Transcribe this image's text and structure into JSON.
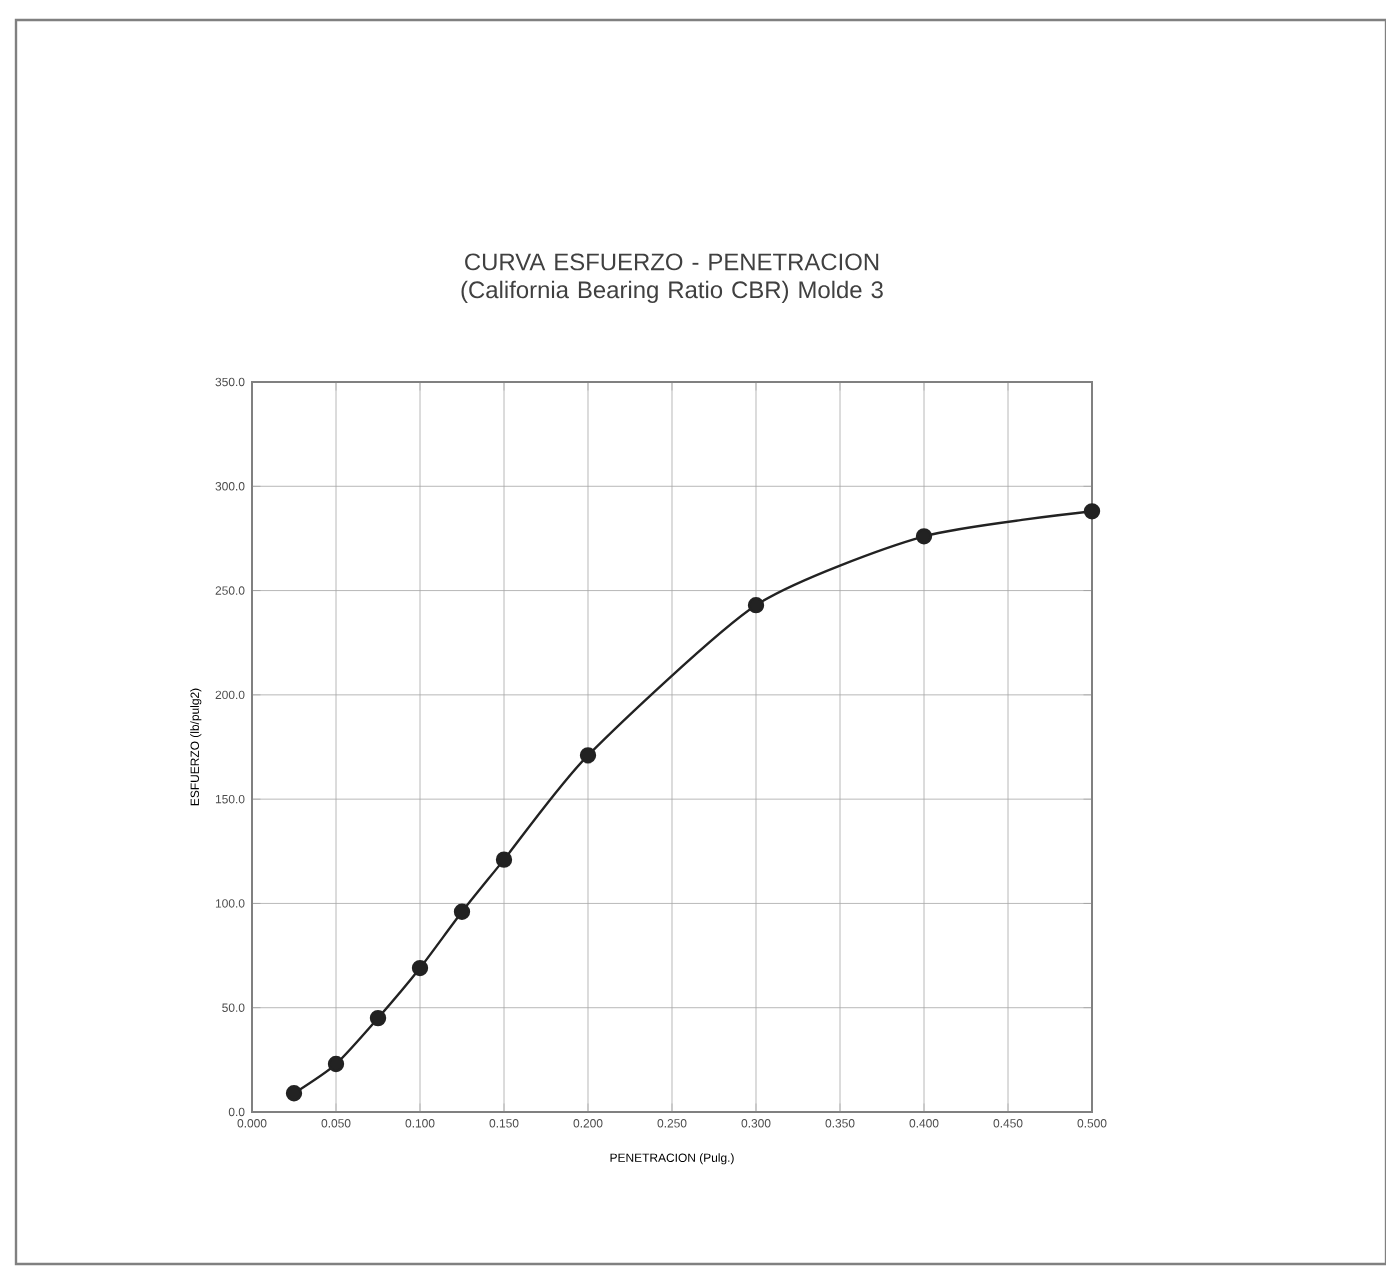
{
  "chart_data": {
    "type": "line",
    "title": "CURVA ESFUERZO - PENETRACION (California Bearing Ratio CBR) Molde 3",
    "xlabel": "PENETRACION (Pulg.)",
    "ylabel": "ESFUERZO (lb/pulg2)",
    "x": [
      0.025,
      0.05,
      0.075,
      0.1,
      0.125,
      0.15,
      0.2,
      0.3,
      0.4,
      0.5
    ],
    "series": [
      {
        "color": "#222222",
        "values": [
          9,
          23,
          45,
          69,
          96,
          121,
          171,
          243,
          276,
          288
        ]
      }
    ],
    "xlim": [
      0,
      0.5
    ],
    "ylim": [
      0,
      350
    ],
    "xticks": [
      {
        "value": 0,
        "label": "0.000"
      },
      {
        "value": 0.05,
        "label": "0.050"
      },
      {
        "value": 0.1,
        "label": "0.100"
      },
      {
        "value": 0.15,
        "label": "0.150"
      },
      {
        "value": 0.2,
        "label": "0.200"
      },
      {
        "value": 0.25,
        "label": "0.250"
      },
      {
        "value": 0.3,
        "label": "0.300"
      },
      {
        "value": 0.35,
        "label": "0.350"
      },
      {
        "value": 0.4,
        "label": "0.400"
      },
      {
        "value": 0.45,
        "label": "0.450"
      },
      {
        "value": 0.5,
        "label": "0.500"
      }
    ],
    "yticks": [
      {
        "value": 0,
        "label": "0.0"
      },
      {
        "value": 50,
        "label": "50.0"
      },
      {
        "value": 100,
        "label": "100.0"
      },
      {
        "value": 150,
        "label": "150.0"
      },
      {
        "value": 200,
        "label": "200.0"
      },
      {
        "value": 250,
        "label": "250.0"
      },
      {
        "value": 300,
        "label": "300.0"
      },
      {
        "value": 350,
        "label": "350.0"
      }
    ],
    "grid": true,
    "marker": "circle",
    "line_style": "solid"
  }
}
